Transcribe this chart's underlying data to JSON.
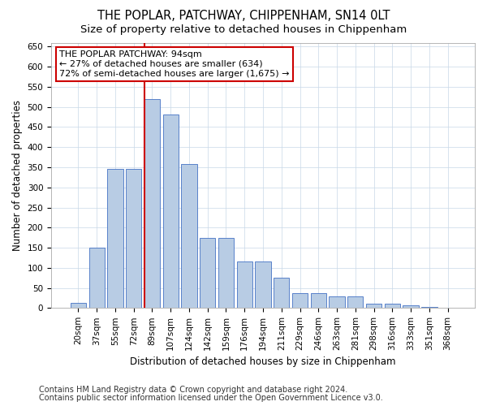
{
  "title": "THE POPLAR, PATCHWAY, CHIPPENHAM, SN14 0LT",
  "subtitle": "Size of property relative to detached houses in Chippenham",
  "xlabel": "Distribution of detached houses by size in Chippenham",
  "ylabel": "Number of detached properties",
  "categories": [
    "20sqm",
    "37sqm",
    "55sqm",
    "72sqm",
    "89sqm",
    "107sqm",
    "124sqm",
    "142sqm",
    "159sqm",
    "176sqm",
    "194sqm",
    "211sqm",
    "229sqm",
    "246sqm",
    "263sqm",
    "281sqm",
    "298sqm",
    "316sqm",
    "333sqm",
    "351sqm",
    "368sqm"
  ],
  "values": [
    13,
    150,
    346,
    346,
    519,
    481,
    359,
    175,
    175,
    115,
    115,
    75,
    37,
    37,
    29,
    29,
    11,
    11,
    7,
    3,
    1
  ],
  "bar_color": "#b8cce4",
  "bar_edge_color": "#4472c4",
  "vline_bin_index": 4,
  "vline_color": "#cc0000",
  "annotation_box_text": "THE POPLAR PATCHWAY: 94sqm\n← 27% of detached houses are smaller (634)\n72% of semi-detached houses are larger (1,675) →",
  "ylim": [
    0,
    660
  ],
  "yticks": [
    0,
    50,
    100,
    150,
    200,
    250,
    300,
    350,
    400,
    450,
    500,
    550,
    600,
    650
  ],
  "footer_line1": "Contains HM Land Registry data © Crown copyright and database right 2024.",
  "footer_line2": "Contains public sector information licensed under the Open Government Licence v3.0.",
  "bg_color": "#ffffff",
  "grid_color": "#c8d8e8",
  "title_fontsize": 10.5,
  "subtitle_fontsize": 9.5,
  "axis_label_fontsize": 8.5,
  "tick_fontsize": 7.5,
  "footer_fontsize": 7.0,
  "ann_fontsize": 8.0
}
